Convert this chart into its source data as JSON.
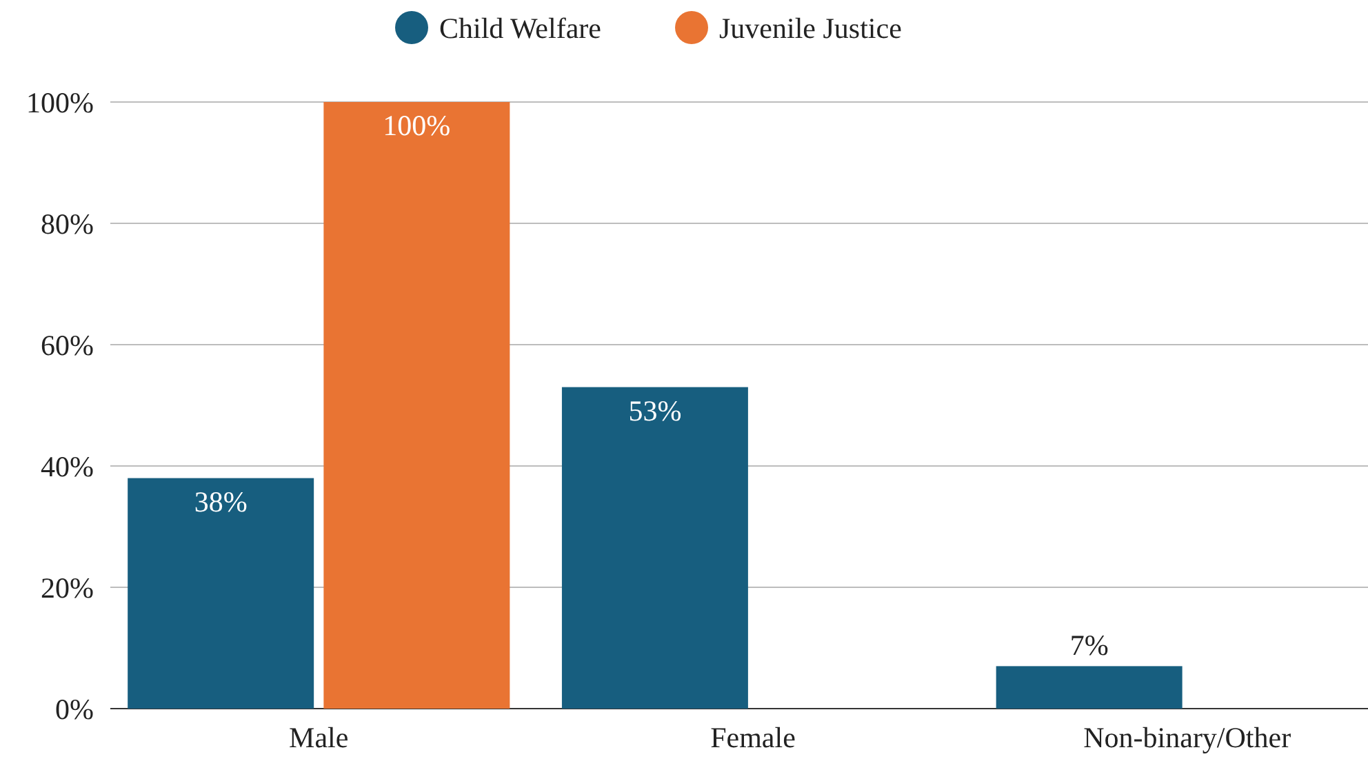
{
  "chart_data": {
    "type": "bar",
    "categories": [
      "Male",
      "Female",
      "Non-binary/Other"
    ],
    "series": [
      {
        "name": "Child Welfare",
        "color": "#175e7f",
        "values": [
          38,
          53,
          7
        ],
        "value_labels": [
          "38%",
          "53%",
          "7%"
        ]
      },
      {
        "name": "Juvenile Justice",
        "color": "#e97433",
        "values": [
          100,
          null,
          null
        ],
        "value_labels": [
          "100%",
          null,
          null
        ]
      }
    ],
    "ylim": [
      0,
      100
    ],
    "yticks": [
      {
        "value": 0,
        "label": "0%"
      },
      {
        "value": 20,
        "label": "20%"
      },
      {
        "value": 40,
        "label": "40%"
      },
      {
        "value": 60,
        "label": "60%"
      },
      {
        "value": 80,
        "label": "80%"
      },
      {
        "value": 100,
        "label": "100%"
      }
    ],
    "grid": "y",
    "legend": "top"
  }
}
